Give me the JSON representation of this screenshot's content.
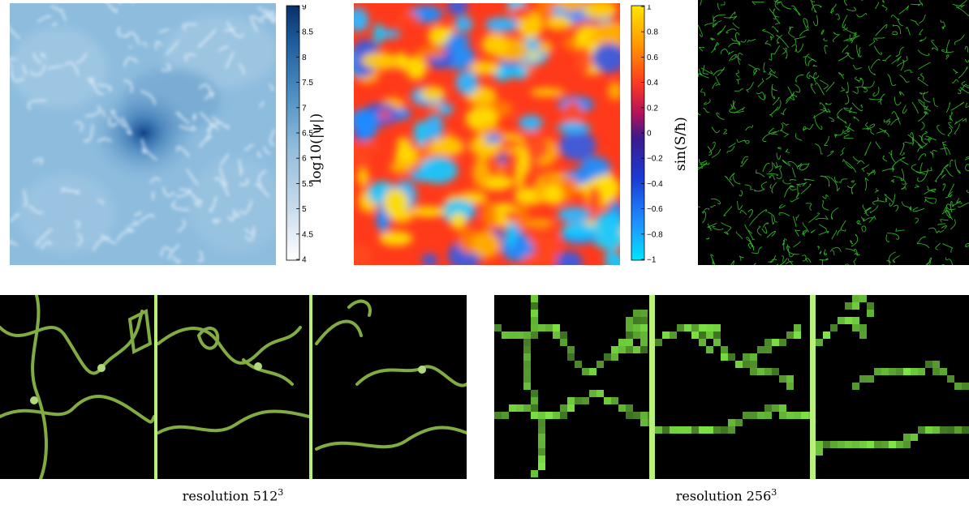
{
  "top_row": {
    "density_panel": {
      "colorbar": {
        "ticks": [
          "9",
          "8.5",
          "8",
          "7.5",
          "7",
          "6.5",
          "6",
          "5.5",
          "5",
          "4.5",
          "4"
        ],
        "label": "log10(|ψ|)",
        "colors": [
          "#ffffff",
          "#c9dcec",
          "#8fbbdb",
          "#4d8fc3",
          "#1f5e9e",
          "#08306b"
        ]
      }
    },
    "phase_panel": {
      "colorbar": {
        "ticks": [
          "1",
          "0.8",
          "0.6",
          "0.4",
          "0.2",
          "0",
          "−0.2",
          "−0.4",
          "−0.6",
          "−0.8",
          "−1"
        ],
        "label": "sin(S/ħ)",
        "colors": [
          "#00e5ff",
          "#1e90ff",
          "#1a3bd6",
          "#3b1a8c",
          "#b5125a",
          "#ff3b1f",
          "#ff9a00",
          "#ffe600"
        ]
      }
    },
    "filament_panel": {
      "color": "#33dd33"
    }
  },
  "bottom_row": {
    "left_group": {
      "caption_prefix": "resolution 512",
      "caption_exp": "3"
    },
    "right_group": {
      "caption_prefix": "resolution 256",
      "caption_exp": "3"
    },
    "divider_color": "#b8f07a"
  }
}
